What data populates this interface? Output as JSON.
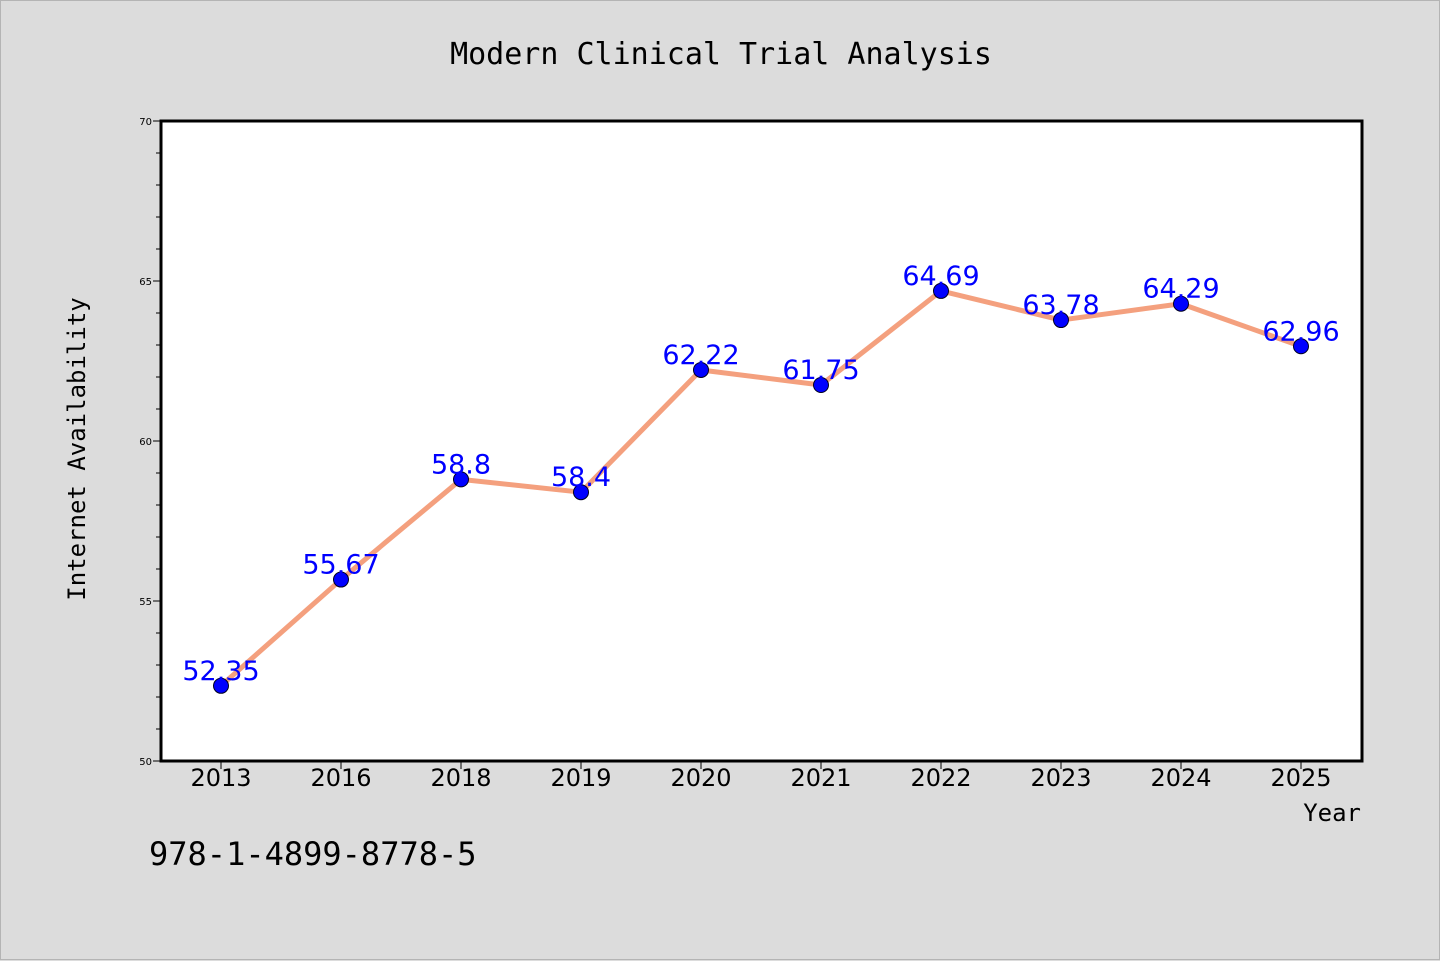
{
  "chart_data": {
    "type": "line",
    "title": "Modern Clinical Trial Analysis",
    "xlabel": "Year",
    "ylabel": "Internet Availability",
    "categories": [
      "2013",
      "2016",
      "2018",
      "2019",
      "2020",
      "2021",
      "2022",
      "2023",
      "2024",
      "2025"
    ],
    "series": [
      {
        "values": [
          52.35,
          55.67,
          58.8,
          58.4,
          62.22,
          61.75,
          64.69,
          63.78,
          64.29,
          62.96
        ],
        "labels": [
          "52.35",
          "55.67",
          "58.8",
          "58.4",
          "62.22",
          "61.75",
          "64.69",
          "63.78",
          "64.29",
          "62.96"
        ],
        "line_color": "#f4a07e",
        "marker_color": "#0000ff"
      }
    ],
    "ylim": [
      50,
      70
    ],
    "yticks": [
      "50",
      "55",
      "60",
      "65",
      "70"
    ],
    "grid": false,
    "legend": "none"
  },
  "footnote": "978-1-4899-8778-5"
}
